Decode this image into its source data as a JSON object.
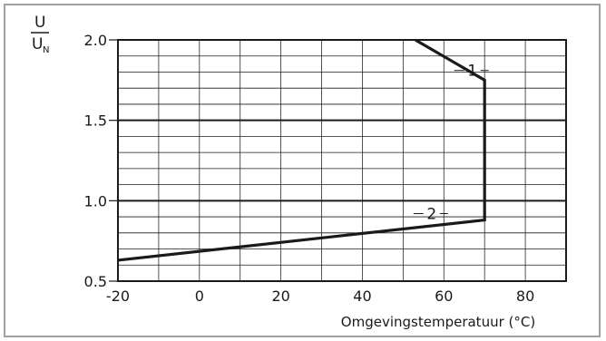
{
  "chart_data": {
    "type": "line",
    "y_axis_label": {
      "numerator": "U",
      "denominator": "U",
      "denominator_subscript": "N"
    },
    "xlabel": "Omgevingstemperatuur (°C)",
    "xlim": [
      -20,
      90
    ],
    "ylim": [
      0.5,
      2.0
    ],
    "x_ticks": [
      {
        "value": -20,
        "label": "-20"
      },
      {
        "value": 0,
        "label": "0"
      },
      {
        "value": 20,
        "label": "20"
      },
      {
        "value": 40,
        "label": "40"
      },
      {
        "value": 60,
        "label": "60"
      },
      {
        "value": 80,
        "label": "80"
      }
    ],
    "y_ticks": [
      {
        "value": 0.5,
        "label": "0.5"
      },
      {
        "value": 1.0,
        "label": "1.0"
      },
      {
        "value": 1.5,
        "label": "1.5"
      },
      {
        "value": 2.0,
        "label": "2.0"
      }
    ],
    "grid": {
      "x_step": 10,
      "y_minor_step": 0.1,
      "y_major_step": 0.5
    },
    "series": [
      {
        "points": [
          [
            53,
            2.0
          ],
          [
            70,
            1.75
          ],
          [
            70,
            0.88
          ],
          [
            -20,
            0.63
          ]
        ]
      }
    ],
    "annotations": [
      {
        "text": "1",
        "x": 67,
        "y": 1.81
      },
      {
        "text": "2",
        "x": 57,
        "y": 0.92
      }
    ]
  }
}
